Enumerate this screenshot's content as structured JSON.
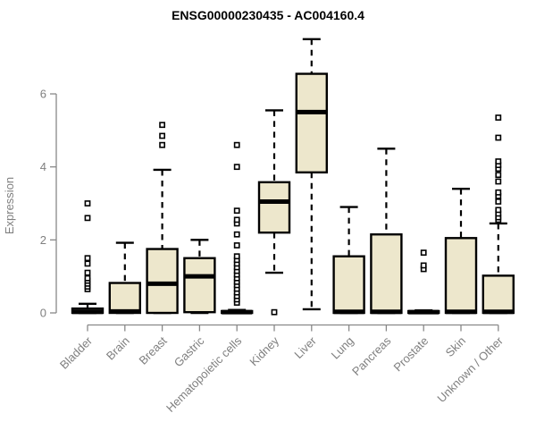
{
  "chart_data": {
    "type": "boxplot",
    "title": "ENSG00000230435 - AC004160.4",
    "ylabel": "Expression",
    "xlabel": "",
    "ylim": [
      0,
      7.6
    ],
    "yticks": [
      0,
      2,
      4,
      6
    ],
    "grid": false,
    "legend": "none",
    "categories": [
      "Bladder",
      "Brain",
      "Breast",
      "Gastric",
      "Hematopoietic cells",
      "Kidney",
      "Liver",
      "Lung",
      "Pancreas",
      "Prostate",
      "Skin",
      "Unknown / Other"
    ],
    "series": [
      {
        "name": "Bladder",
        "low": 0,
        "q1": 0,
        "median": 0.03,
        "q3": 0.12,
        "high": 0.25,
        "outliers": [
          0.65,
          0.72,
          0.8,
          0.88,
          0.95,
          1.1,
          1.35,
          1.5,
          2.6,
          3.0
        ]
      },
      {
        "name": "Brain",
        "low": 0,
        "q1": 0,
        "median": 0.04,
        "q3": 0.82,
        "high": 1.92,
        "outliers": []
      },
      {
        "name": "Breast",
        "low": 0,
        "q1": 0,
        "median": 0.8,
        "q3": 1.75,
        "high": 3.92,
        "outliers": [
          4.6,
          4.85,
          5.15
        ]
      },
      {
        "name": "Gastric",
        "low": 0,
        "q1": 0.02,
        "median": 1.0,
        "q3": 1.5,
        "high": 2.0,
        "outliers": []
      },
      {
        "name": "Hematopoietic cells",
        "low": 0,
        "q1": 0,
        "median": 0.02,
        "q3": 0.05,
        "high": 0.08,
        "outliers": [
          0.28,
          0.37,
          0.46,
          0.56,
          0.66,
          0.76,
          0.85,
          0.95,
          1.05,
          1.15,
          1.25,
          1.35,
          1.45,
          1.55,
          1.85,
          2.15,
          2.45,
          2.55,
          2.8,
          4.0,
          4.6
        ]
      },
      {
        "name": "Kidney",
        "low": 1.1,
        "q1": 2.2,
        "median": 3.05,
        "q3": 3.58,
        "high": 5.55,
        "outliers": [
          0.02
        ]
      },
      {
        "name": "Liver",
        "low": 0.1,
        "q1": 3.85,
        "median": 5.5,
        "q3": 6.55,
        "high": 7.5,
        "outliers": []
      },
      {
        "name": "Lung",
        "low": 0,
        "q1": 0,
        "median": 0.03,
        "q3": 1.55,
        "high": 2.9,
        "outliers": []
      },
      {
        "name": "Pancreas",
        "low": 0,
        "q1": 0,
        "median": 0.03,
        "q3": 2.15,
        "high": 4.5,
        "outliers": []
      },
      {
        "name": "Prostate",
        "low": 0,
        "q1": 0,
        "median": 0.02,
        "q3": 0.05,
        "high": 0.07,
        "outliers": [
          1.2,
          1.3,
          1.65
        ]
      },
      {
        "name": "Skin",
        "low": 0,
        "q1": 0,
        "median": 0.03,
        "q3": 2.05,
        "high": 3.4,
        "outliers": []
      },
      {
        "name": "Unknown / Other",
        "low": 0,
        "q1": 0,
        "median": 0.03,
        "q3": 1.02,
        "high": 2.45,
        "outliers": [
          2.55,
          2.62,
          2.72,
          2.82,
          3.05,
          3.2,
          3.3,
          3.6,
          3.78,
          3.95,
          4.05,
          4.15,
          4.8,
          5.35
        ]
      }
    ],
    "colors": {
      "box_fill": "#EDE7CC",
      "box_stroke": "#000000",
      "median": "#000000",
      "whisker": "#000000",
      "outlier_stroke": "#000000",
      "outlier_fill": "#FFFFFF",
      "axis": "#888888",
      "tick_label": "#7F7F7F",
      "title": "#000000",
      "background": "#FFFFFF"
    }
  }
}
